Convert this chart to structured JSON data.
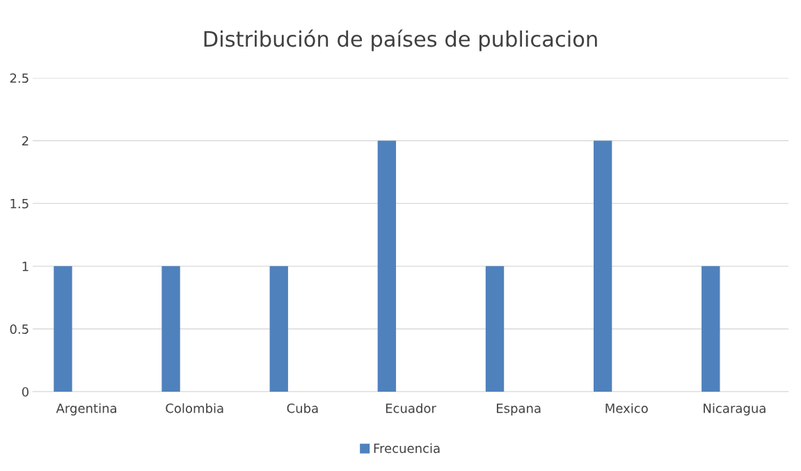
{
  "chart_data": {
    "type": "bar",
    "title": "Distribución de países de publicacion",
    "categories": [
      "Argentina",
      "Colombia",
      "Cuba",
      "Ecuador",
      "Espana",
      "Mexico",
      "Nicaragua"
    ],
    "series": [
      {
        "name": "Frecuencia",
        "color": "#4f81bd",
        "values": [
          1,
          1,
          1,
          2,
          1,
          2,
          1
        ]
      }
    ],
    "ylim": [
      0,
      2.5
    ],
    "yticks": [
      0,
      0.5,
      1,
      1.5,
      2,
      2.5
    ],
    "grid": "y",
    "legend": "bottom"
  }
}
